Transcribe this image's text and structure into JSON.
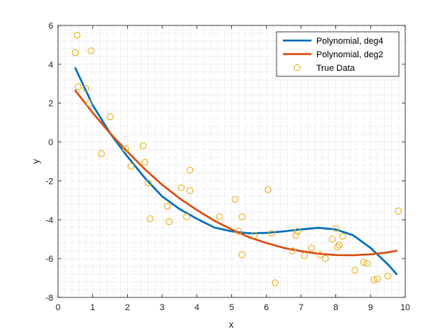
{
  "chart_data": {
    "type": "line",
    "title": "",
    "xlabel": "x",
    "ylabel": "y",
    "xlim": [
      0,
      10
    ],
    "ylim": [
      -8,
      6
    ],
    "xticks": [
      "0",
      "1",
      "2",
      "3",
      "4",
      "5",
      "6",
      "7",
      "8",
      "9",
      "10"
    ],
    "yticks": [
      "-8",
      "-6",
      "-4",
      "-2",
      "0",
      "2",
      "4",
      "6"
    ],
    "grid": "minor-dotted",
    "box": true,
    "legend_position": "top-right",
    "series": [
      {
        "name": "Polynomial, deg4",
        "type": "line",
        "color": "#0072BD",
        "x": [
          0.5,
          1.0,
          1.5,
          2.0,
          2.5,
          3.0,
          3.5,
          4.0,
          4.5,
          5.0,
          5.5,
          6.0,
          6.5,
          7.0,
          7.5,
          8.0,
          8.5,
          9.0,
          9.5,
          9.75
        ],
        "y": [
          3.8,
          1.9,
          0.45,
          -0.75,
          -1.85,
          -2.8,
          -3.45,
          -3.95,
          -4.4,
          -4.6,
          -4.7,
          -4.68,
          -4.6,
          -4.5,
          -4.42,
          -4.5,
          -4.8,
          -5.45,
          -6.3,
          -6.8
        ]
      },
      {
        "name": "Polynomial, deg2",
        "type": "line",
        "color": "#D95319",
        "x": [
          0.5,
          1.0,
          1.5,
          2.0,
          2.5,
          3.0,
          3.5,
          4.0,
          4.5,
          5.0,
          5.5,
          6.0,
          6.5,
          7.0,
          7.5,
          8.0,
          8.5,
          9.0,
          9.5,
          9.75
        ],
        "y": [
          2.65,
          1.5,
          0.45,
          -0.5,
          -1.4,
          -2.2,
          -2.9,
          -3.5,
          -4.05,
          -4.5,
          -4.9,
          -5.2,
          -5.45,
          -5.62,
          -5.75,
          -5.82,
          -5.83,
          -5.78,
          -5.68,
          -5.6
        ]
      },
      {
        "name": "True Data",
        "type": "scatter",
        "color": "#EDB120",
        "x": [
          0.55,
          0.5,
          0.95,
          0.58,
          0.8,
          0.9,
          1.25,
          1.5,
          1.95,
          2.1,
          2.45,
          2.5,
          2.6,
          2.65,
          3.15,
          3.2,
          3.55,
          3.7,
          3.8,
          3.8,
          4.65,
          5.1,
          5.2,
          5.3,
          5.3,
          5.65,
          6.05,
          6.15,
          6.25,
          6.75,
          6.85,
          6.9,
          7.1,
          7.3,
          7.55,
          7.7,
          7.9,
          8.0,
          8.05,
          8.1,
          8.2,
          8.55,
          8.8,
          8.9,
          9.1,
          9.2,
          9.5,
          9.8
        ],
        "y": [
          5.5,
          4.6,
          4.7,
          2.85,
          2.75,
          2.0,
          -0.6,
          1.3,
          -0.35,
          -1.25,
          -0.2,
          -1.05,
          -2.1,
          -3.95,
          -3.3,
          -4.1,
          -2.35,
          -3.85,
          -1.45,
          -2.5,
          -3.85,
          -2.95,
          -4.6,
          -3.85,
          -5.8,
          -4.8,
          -2.45,
          -4.7,
          -7.25,
          -5.6,
          -4.8,
          -4.6,
          -5.85,
          -5.45,
          -5.8,
          -6.0,
          -5.0,
          -4.45,
          -5.4,
          -5.3,
          -4.85,
          -6.6,
          -6.2,
          -6.25,
          -7.1,
          -7.05,
          -6.9,
          -3.55
        ]
      }
    ]
  }
}
